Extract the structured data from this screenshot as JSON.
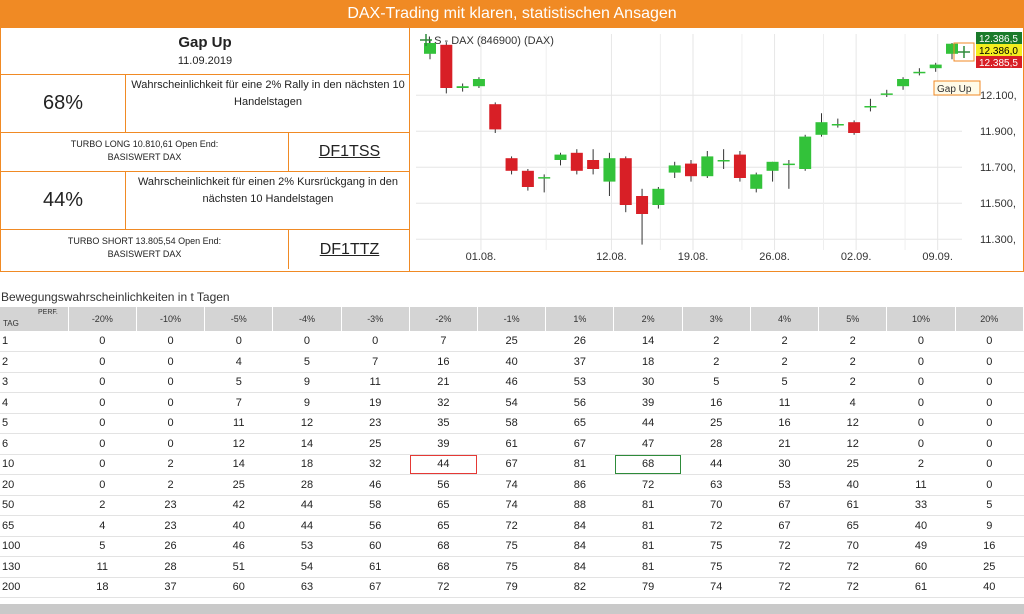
{
  "banner": {
    "title": "DAX-Trading mit klaren, statistischen Ansagen"
  },
  "signal": {
    "name": "Gap Up",
    "date": "11.09.2019"
  },
  "rally": {
    "percent": "68%",
    "text": "Wahrscheinlichkeit für eine 2% Rally in den nächsten 10 Handelstagen",
    "turbo_line1": "TURBO LONG 10.810,61 Open End:",
    "turbo_line2": "BASISWERT DAX",
    "wkn": "DF1TSS"
  },
  "drop": {
    "percent": "44%",
    "text": "Wahrscheinlichkeit für einen 2% Kursrückgang in den nächsten 10 Handelstagen",
    "turbo_line1": "TURBO SHORT 13.805,54 Open End:",
    "turbo_line2": "BASISWERT DAX",
    "wkn": "DF1TTZ"
  },
  "chart_data": {
    "type": "candlestick",
    "title": "LS - DAX (846900) (DAX)",
    "y_ticks": [
      "11.300,",
      "11.500,",
      "11.700,",
      "11.900,",
      "12.100,"
    ],
    "y_tick_values": [
      11300,
      11500,
      11700,
      11900,
      12100
    ],
    "ylim": [
      11240,
      12440
    ],
    "x_ticks": [
      "01.08.",
      "12.08.",
      "19.08.",
      "26.08.",
      "02.09.",
      "09.09."
    ],
    "price_tags": [
      {
        "text": "12.386,5",
        "value": 12386.5,
        "color": "#1a7a2a",
        "text_color": "#ffffff"
      },
      {
        "text": "12.386,0",
        "value": 12386.0,
        "color": "#f4ee1f",
        "text_color": "#000000"
      },
      {
        "text": "12.385,5",
        "value": 12385.5,
        "color": "#d81f26",
        "text_color": "#ffffff"
      }
    ],
    "annotation": "Gap Up",
    "colors": {
      "up": "#33c23a",
      "down": "#d81f26"
    },
    "candles": [
      {
        "o": 12330,
        "h": 12410,
        "l": 12300,
        "c": 12390
      },
      {
        "o": 12380,
        "h": 12395,
        "l": 12110,
        "c": 12140
      },
      {
        "o": 12140,
        "h": 12165,
        "l": 12120,
        "c": 12150
      },
      {
        "o": 12150,
        "h": 12200,
        "l": 12140,
        "c": 12190
      },
      {
        "o": 12050,
        "h": 12060,
        "l": 11890,
        "c": 11910
      },
      {
        "o": 11750,
        "h": 11760,
        "l": 11660,
        "c": 11680
      },
      {
        "o": 11680,
        "h": 11690,
        "l": 11570,
        "c": 11590
      },
      {
        "o": 11645,
        "h": 11660,
        "l": 11560,
        "c": 11645
      },
      {
        "o": 11740,
        "h": 11780,
        "l": 11710,
        "c": 11770
      },
      {
        "o": 11780,
        "h": 11800,
        "l": 11660,
        "c": 11680
      },
      {
        "o": 11740,
        "h": 11800,
        "l": 11660,
        "c": 11690
      },
      {
        "o": 11620,
        "h": 11780,
        "l": 11540,
        "c": 11750
      },
      {
        "o": 11750,
        "h": 11760,
        "l": 11450,
        "c": 11490
      },
      {
        "o": 11540,
        "h": 11580,
        "l": 11270,
        "c": 11440
      },
      {
        "o": 11490,
        "h": 11590,
        "l": 11470,
        "c": 11580
      },
      {
        "o": 11670,
        "h": 11730,
        "l": 11640,
        "c": 11710
      },
      {
        "o": 11720,
        "h": 11740,
        "l": 11620,
        "c": 11650
      },
      {
        "o": 11650,
        "h": 11790,
        "l": 11640,
        "c": 11760
      },
      {
        "o": 11740,
        "h": 11800,
        "l": 11690,
        "c": 11740
      },
      {
        "o": 11770,
        "h": 11790,
        "l": 11620,
        "c": 11640
      },
      {
        "o": 11580,
        "h": 11670,
        "l": 11560,
        "c": 11660
      },
      {
        "o": 11680,
        "h": 11730,
        "l": 11620,
        "c": 11730
      },
      {
        "o": 11720,
        "h": 11740,
        "l": 11580,
        "c": 11720
      },
      {
        "o": 11690,
        "h": 11880,
        "l": 11680,
        "c": 11870
      },
      {
        "o": 11880,
        "h": 12000,
        "l": 11870,
        "c": 11950
      },
      {
        "o": 11940,
        "h": 11970,
        "l": 11920,
        "c": 11940
      },
      {
        "o": 11950,
        "h": 11960,
        "l": 11880,
        "c": 11890
      },
      {
        "o": 12040,
        "h": 12080,
        "l": 12010,
        "c": 12040
      },
      {
        "o": 12110,
        "h": 12130,
        "l": 12090,
        "c": 12110
      },
      {
        "o": 12150,
        "h": 12200,
        "l": 12130,
        "c": 12190
      },
      {
        "o": 12230,
        "h": 12250,
        "l": 12210,
        "c": 12230
      },
      {
        "o": 12250,
        "h": 12280,
        "l": 12230,
        "c": 12270
      },
      {
        "o": 12330,
        "h": 12390,
        "l": 12300,
        "c": 12386
      }
    ]
  },
  "table": {
    "section_title": "Bewegungswahrscheinlichkeiten in t Tagen",
    "corner_perf": "PERF.",
    "corner_tag": "TAG",
    "headers": [
      "-20%",
      "-10%",
      "-5%",
      "-4%",
      "-3%",
      "-2%",
      "-1%",
      "1%",
      "2%",
      "3%",
      "4%",
      "5%",
      "10%",
      "20%"
    ],
    "rows": [
      {
        "tag": "1",
        "values": [
          "0",
          "0",
          "0",
          "0",
          "0",
          "7",
          "25",
          "26",
          "14",
          "2",
          "2",
          "2",
          "0",
          "0"
        ]
      },
      {
        "tag": "2",
        "values": [
          "0",
          "0",
          "4",
          "5",
          "7",
          "16",
          "40",
          "37",
          "18",
          "2",
          "2",
          "2",
          "0",
          "0"
        ]
      },
      {
        "tag": "3",
        "values": [
          "0",
          "0",
          "5",
          "9",
          "11",
          "21",
          "46",
          "53",
          "30",
          "5",
          "5",
          "2",
          "0",
          "0"
        ]
      },
      {
        "tag": "4",
        "values": [
          "0",
          "0",
          "7",
          "9",
          "19",
          "32",
          "54",
          "56",
          "39",
          "16",
          "11",
          "4",
          "0",
          "0"
        ]
      },
      {
        "tag": "5",
        "values": [
          "0",
          "0",
          "11",
          "12",
          "23",
          "35",
          "58",
          "65",
          "44",
          "25",
          "16",
          "12",
          "0",
          "0"
        ]
      },
      {
        "tag": "6",
        "values": [
          "0",
          "0",
          "12",
          "14",
          "25",
          "39",
          "61",
          "67",
          "47",
          "28",
          "21",
          "12",
          "0",
          "0"
        ]
      },
      {
        "tag": "10",
        "values": [
          "0",
          "2",
          "14",
          "18",
          "32",
          "44",
          "67",
          "81",
          "68",
          "44",
          "30",
          "25",
          "2",
          "0"
        ]
      },
      {
        "tag": "20",
        "values": [
          "0",
          "2",
          "25",
          "28",
          "46",
          "56",
          "74",
          "86",
          "72",
          "63",
          "53",
          "40",
          "11",
          "0"
        ]
      },
      {
        "tag": "50",
        "values": [
          "2",
          "23",
          "42",
          "44",
          "58",
          "65",
          "74",
          "88",
          "81",
          "70",
          "67",
          "61",
          "33",
          "5"
        ]
      },
      {
        "tag": "65",
        "values": [
          "4",
          "23",
          "40",
          "44",
          "56",
          "65",
          "72",
          "84",
          "81",
          "72",
          "67",
          "65",
          "40",
          "9"
        ]
      },
      {
        "tag": "100",
        "values": [
          "5",
          "26",
          "46",
          "53",
          "60",
          "68",
          "75",
          "84",
          "81",
          "75",
          "72",
          "70",
          "49",
          "16"
        ]
      },
      {
        "tag": "130",
        "values": [
          "11",
          "28",
          "51",
          "54",
          "61",
          "68",
          "75",
          "84",
          "81",
          "75",
          "72",
          "72",
          "60",
          "25"
        ]
      },
      {
        "tag": "200",
        "values": [
          "18",
          "37",
          "60",
          "63",
          "67",
          "72",
          "79",
          "82",
          "79",
          "74",
          "72",
          "72",
          "61",
          "40"
        ]
      }
    ],
    "highlights": [
      {
        "tag": "10",
        "header": "-2%",
        "color": "red"
      },
      {
        "tag": "10",
        "header": "2%",
        "color": "green"
      }
    ]
  }
}
